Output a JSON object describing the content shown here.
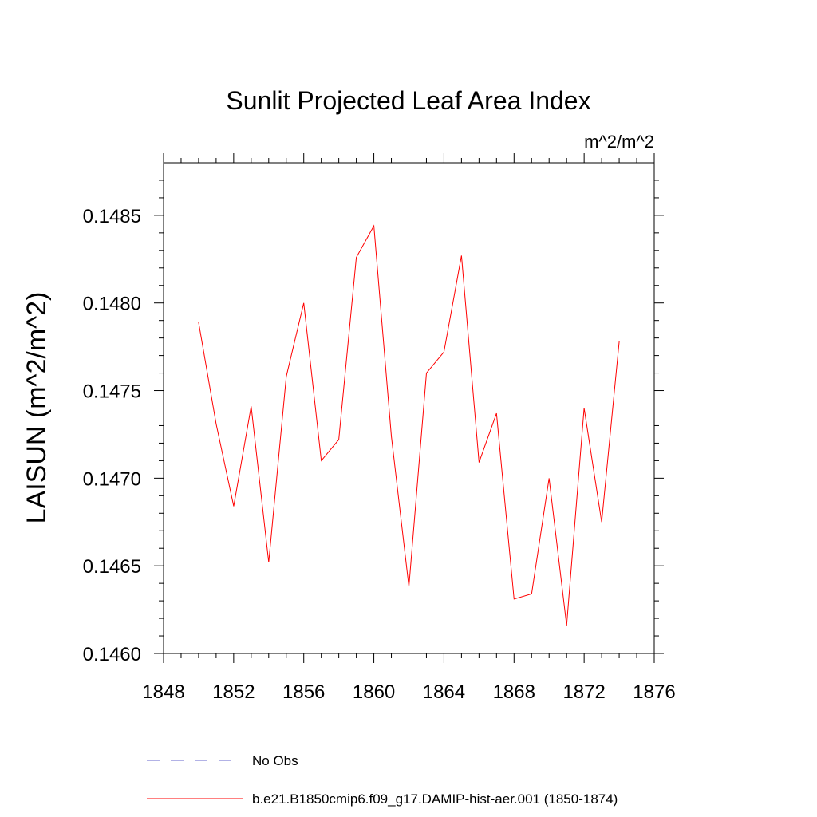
{
  "chart_data": {
    "type": "line",
    "title": "Sunlit Projected Leaf Area Index",
    "units": "m^2/m^2",
    "xlabel": "",
    "ylabel": "LAISUN  (m^2/m^2)",
    "xlim": [
      1848,
      1876
    ],
    "ylim": [
      0.146,
      0.1488
    ],
    "xticks": [
      1848,
      1852,
      1856,
      1860,
      1864,
      1868,
      1872,
      1876
    ],
    "yticks": [
      0.146,
      0.1465,
      0.147,
      0.1475,
      0.148,
      0.1485
    ],
    "ytick_labels": [
      "0.1460",
      "0.1465",
      "0.1470",
      "0.1475",
      "0.1480",
      "0.1485"
    ],
    "xtick_labels": [
      "1848",
      "1852",
      "1856",
      "1860",
      "1864",
      "1868",
      "1872",
      "1876"
    ],
    "legend": {
      "position": "bottom",
      "entries": [
        {
          "label": "No Obs",
          "color": "#6666cc",
          "dash": "dashed"
        },
        {
          "label": "b.e21.B1850cmip6.f09_g17.DAMIP-hist-aer.001 (1850-1874)",
          "color": "#ff0000",
          "dash": "solid"
        }
      ]
    },
    "series": [
      {
        "name": "b.e21.B1850cmip6.f09_g17.DAMIP-hist-aer.001 (1850-1874)",
        "color": "#ff0000",
        "x": [
          1850,
          1851,
          1852,
          1853,
          1854,
          1855,
          1856,
          1857,
          1858,
          1859,
          1860,
          1861,
          1862,
          1863,
          1864,
          1865,
          1866,
          1867,
          1868,
          1869,
          1870,
          1871,
          1872,
          1873,
          1874
        ],
        "y": [
          0.14789,
          0.14731,
          0.14684,
          0.14741,
          0.14652,
          0.14758,
          0.148,
          0.1471,
          0.14722,
          0.14826,
          0.14844,
          0.14724,
          0.14638,
          0.1476,
          0.14772,
          0.14827,
          0.14709,
          0.14737,
          0.14631,
          0.14634,
          0.147,
          0.14616,
          0.1474,
          0.14675,
          0.14778
        ]
      }
    ]
  }
}
